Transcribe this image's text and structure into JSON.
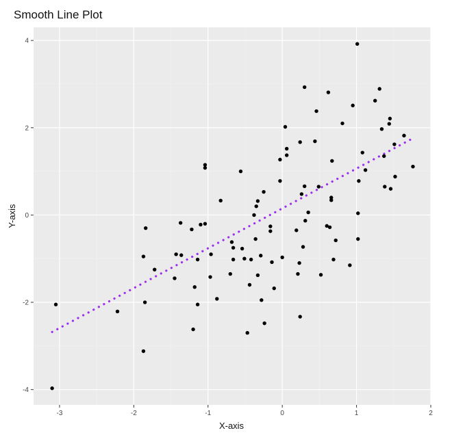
{
  "chart_data": {
    "type": "scatter",
    "title": "Smooth Line Plot",
    "xlabel": "X-axis",
    "ylabel": "Y-axis",
    "xlim": [
      -3.35,
      2.0
    ],
    "ylim": [
      -4.35,
      4.3
    ],
    "x_ticks": [
      -3,
      -2,
      -1,
      0,
      1,
      2
    ],
    "y_ticks": [
      -4,
      -2,
      0,
      2,
      4
    ],
    "grid": true,
    "legend": "none",
    "colors": {
      "panel_background": "#ebebeb",
      "points": "#000000",
      "smooth_line": "#9b30f0"
    },
    "smooth_line": {
      "style": "dotted",
      "x": [
        -3.1,
        1.75
      ],
      "y": [
        -2.68,
        1.75
      ]
    },
    "points": [
      {
        "x": -3.1,
        "y": -3.97
      },
      {
        "x": -3.05,
        "y": -2.05
      },
      {
        "x": -2.22,
        "y": -2.21
      },
      {
        "x": -1.87,
        "y": -3.12
      },
      {
        "x": -1.87,
        "y": -0.95
      },
      {
        "x": -1.85,
        "y": -2.0
      },
      {
        "x": -1.84,
        "y": -0.3
      },
      {
        "x": -1.72,
        "y": -1.25
      },
      {
        "x": -1.45,
        "y": -1.45
      },
      {
        "x": -1.43,
        "y": -0.9
      },
      {
        "x": -1.37,
        "y": -0.18
      },
      {
        "x": -1.36,
        "y": -0.92
      },
      {
        "x": -1.22,
        "y": -0.33
      },
      {
        "x": -1.2,
        "y": -2.62
      },
      {
        "x": -1.18,
        "y": -1.65
      },
      {
        "x": -1.14,
        "y": -1.02
      },
      {
        "x": -1.14,
        "y": -2.05
      },
      {
        "x": -1.1,
        "y": -0.22
      },
      {
        "x": -1.04,
        "y": -0.2
      },
      {
        "x": -1.04,
        "y": 1.15
      },
      {
        "x": -1.04,
        "y": 1.08
      },
      {
        "x": -0.97,
        "y": -1.42
      },
      {
        "x": -0.96,
        "y": -0.9
      },
      {
        "x": -0.88,
        "y": -1.92
      },
      {
        "x": -0.83,
        "y": 0.33
      },
      {
        "x": -0.7,
        "y": -1.35
      },
      {
        "x": -0.68,
        "y": -0.62
      },
      {
        "x": -0.66,
        "y": -1.02
      },
      {
        "x": -0.66,
        "y": -0.75
      },
      {
        "x": -0.56,
        "y": 1.0
      },
      {
        "x": -0.54,
        "y": -0.77
      },
      {
        "x": -0.51,
        "y": -1.0
      },
      {
        "x": -0.47,
        "y": -2.7
      },
      {
        "x": -0.44,
        "y": -1.6
      },
      {
        "x": -0.42,
        "y": -1.02
      },
      {
        "x": -0.38,
        "y": 0.0
      },
      {
        "x": -0.36,
        "y": -0.55
      },
      {
        "x": -0.35,
        "y": 0.2
      },
      {
        "x": -0.33,
        "y": 0.32
      },
      {
        "x": -0.33,
        "y": -1.38
      },
      {
        "x": -0.29,
        "y": -0.93
      },
      {
        "x": -0.28,
        "y": -1.95
      },
      {
        "x": -0.25,
        "y": 0.53
      },
      {
        "x": -0.24,
        "y": -2.48
      },
      {
        "x": -0.16,
        "y": -0.26
      },
      {
        "x": -0.16,
        "y": -0.37
      },
      {
        "x": -0.14,
        "y": -1.08
      },
      {
        "x": -0.11,
        "y": -1.68
      },
      {
        "x": -0.03,
        "y": 0.78
      },
      {
        "x": -0.03,
        "y": 1.27
      },
      {
        "x": 0.0,
        "y": -0.97
      },
      {
        "x": 0.04,
        "y": 2.02
      },
      {
        "x": 0.06,
        "y": 1.52
      },
      {
        "x": 0.06,
        "y": 1.37
      },
      {
        "x": 0.19,
        "y": -0.35
      },
      {
        "x": 0.21,
        "y": -1.35
      },
      {
        "x": 0.23,
        "y": -1.1
      },
      {
        "x": 0.24,
        "y": 1.67
      },
      {
        "x": 0.24,
        "y": -2.33
      },
      {
        "x": 0.26,
        "y": 0.48
      },
      {
        "x": 0.28,
        "y": -0.73
      },
      {
        "x": 0.3,
        "y": 2.93
      },
      {
        "x": 0.3,
        "y": 0.66
      },
      {
        "x": 0.31,
        "y": -0.13
      },
      {
        "x": 0.35,
        "y": 0.06
      },
      {
        "x": 0.44,
        "y": 1.69
      },
      {
        "x": 0.46,
        "y": 2.38
      },
      {
        "x": 0.49,
        "y": 0.65
      },
      {
        "x": 0.52,
        "y": -1.37
      },
      {
        "x": 0.6,
        "y": -0.25
      },
      {
        "x": 0.62,
        "y": 2.81
      },
      {
        "x": 0.64,
        "y": -0.28
      },
      {
        "x": 0.66,
        "y": 0.4
      },
      {
        "x": 0.66,
        "y": 0.34
      },
      {
        "x": 0.67,
        "y": 1.24
      },
      {
        "x": 0.69,
        "y": -1.02
      },
      {
        "x": 0.72,
        "y": -0.58
      },
      {
        "x": 0.81,
        "y": 2.1
      },
      {
        "x": 0.91,
        "y": -1.15
      },
      {
        "x": 0.95,
        "y": 2.51
      },
      {
        "x": 1.01,
        "y": 3.92
      },
      {
        "x": 1.02,
        "y": 0.04
      },
      {
        "x": 1.02,
        "y": -0.55
      },
      {
        "x": 1.03,
        "y": 0.78
      },
      {
        "x": 1.08,
        "y": 1.43
      },
      {
        "x": 1.12,
        "y": 1.03
      },
      {
        "x": 1.25,
        "y": 2.62
      },
      {
        "x": 1.31,
        "y": 2.89
      },
      {
        "x": 1.34,
        "y": 1.97
      },
      {
        "x": 1.37,
        "y": 1.35
      },
      {
        "x": 1.38,
        "y": 0.65
      },
      {
        "x": 1.44,
        "y": 2.09
      },
      {
        "x": 1.45,
        "y": 2.21
      },
      {
        "x": 1.46,
        "y": 0.6
      },
      {
        "x": 1.51,
        "y": 1.62
      },
      {
        "x": 1.52,
        "y": 0.88
      },
      {
        "x": 1.64,
        "y": 1.82
      },
      {
        "x": 1.76,
        "y": 1.11
      }
    ]
  }
}
